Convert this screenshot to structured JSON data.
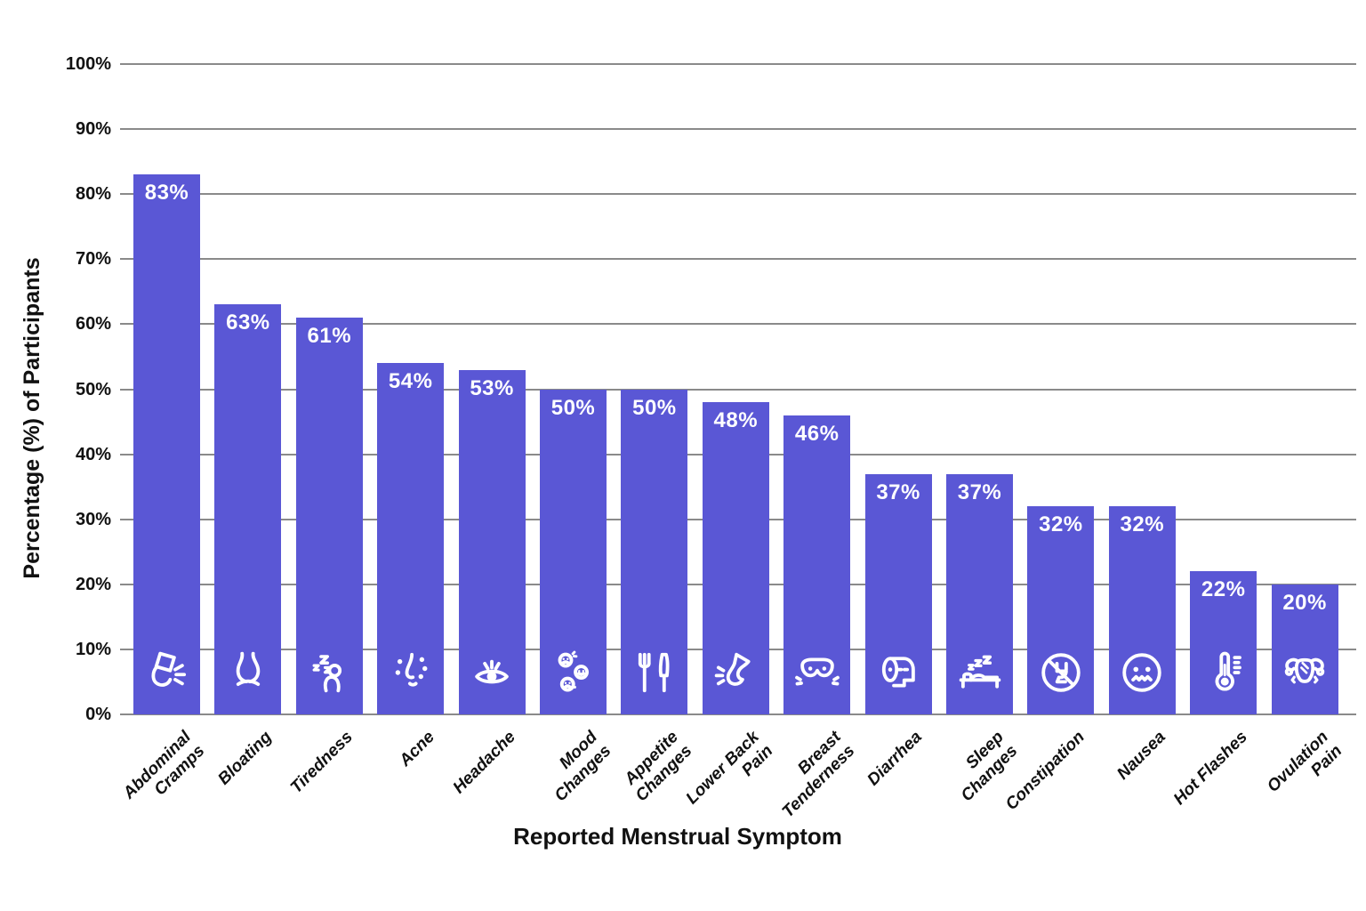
{
  "chart_data": {
    "type": "bar",
    "title": "",
    "xlabel": "Reported Menstrual Symptom",
    "ylabel": "Percentage (%) of Participants",
    "ylim": [
      0,
      100
    ],
    "ytick_step": 10,
    "yticks": [
      "0%",
      "10%",
      "20%",
      "30%",
      "40%",
      "50%",
      "60%",
      "70%",
      "80%",
      "90%",
      "100%"
    ],
    "grid": "horizontal-gridlines-on",
    "legend": "none",
    "categories": [
      "Abdominal\nCramps",
      "Bloating",
      "Tiredness",
      "Acne",
      "Headache",
      "Mood\nChanges",
      "Appetite\nChanges",
      "Lower Back\nPain",
      "Breast\nTenderness",
      "Diarrhea",
      "Sleep\nChanges",
      "Constipation",
      "Nausea",
      "Hot Flashes",
      "Ovulation\nPain"
    ],
    "values": [
      83,
      63,
      61,
      54,
      53,
      50,
      50,
      48,
      46,
      37,
      37,
      32,
      32,
      22,
      20
    ],
    "value_labels": [
      "83%",
      "63%",
      "61%",
      "54%",
      "53%",
      "50%",
      "50%",
      "48%",
      "46%",
      "37%",
      "37%",
      "32%",
      "32%",
      "22%",
      "20%"
    ],
    "icons": [
      "abdominal-cramps-icon",
      "bloating-icon",
      "tiredness-icon",
      "acne-icon",
      "headache-icon",
      "mood-changes-icon",
      "appetite-changes-icon",
      "lower-back-pain-icon",
      "breast-tenderness-icon",
      "diarrhea-icon",
      "sleep-changes-icon",
      "constipation-icon",
      "nausea-icon",
      "hot-flashes-icon",
      "ovulation-pain-icon"
    ],
    "colors": {
      "bar": "#5a57d5",
      "bar_value_text": "#ffffff",
      "icon_stroke": "#ffffff",
      "gridline": "#8a8a8a",
      "axis_text": "#111111",
      "background": "#ffffff"
    }
  }
}
